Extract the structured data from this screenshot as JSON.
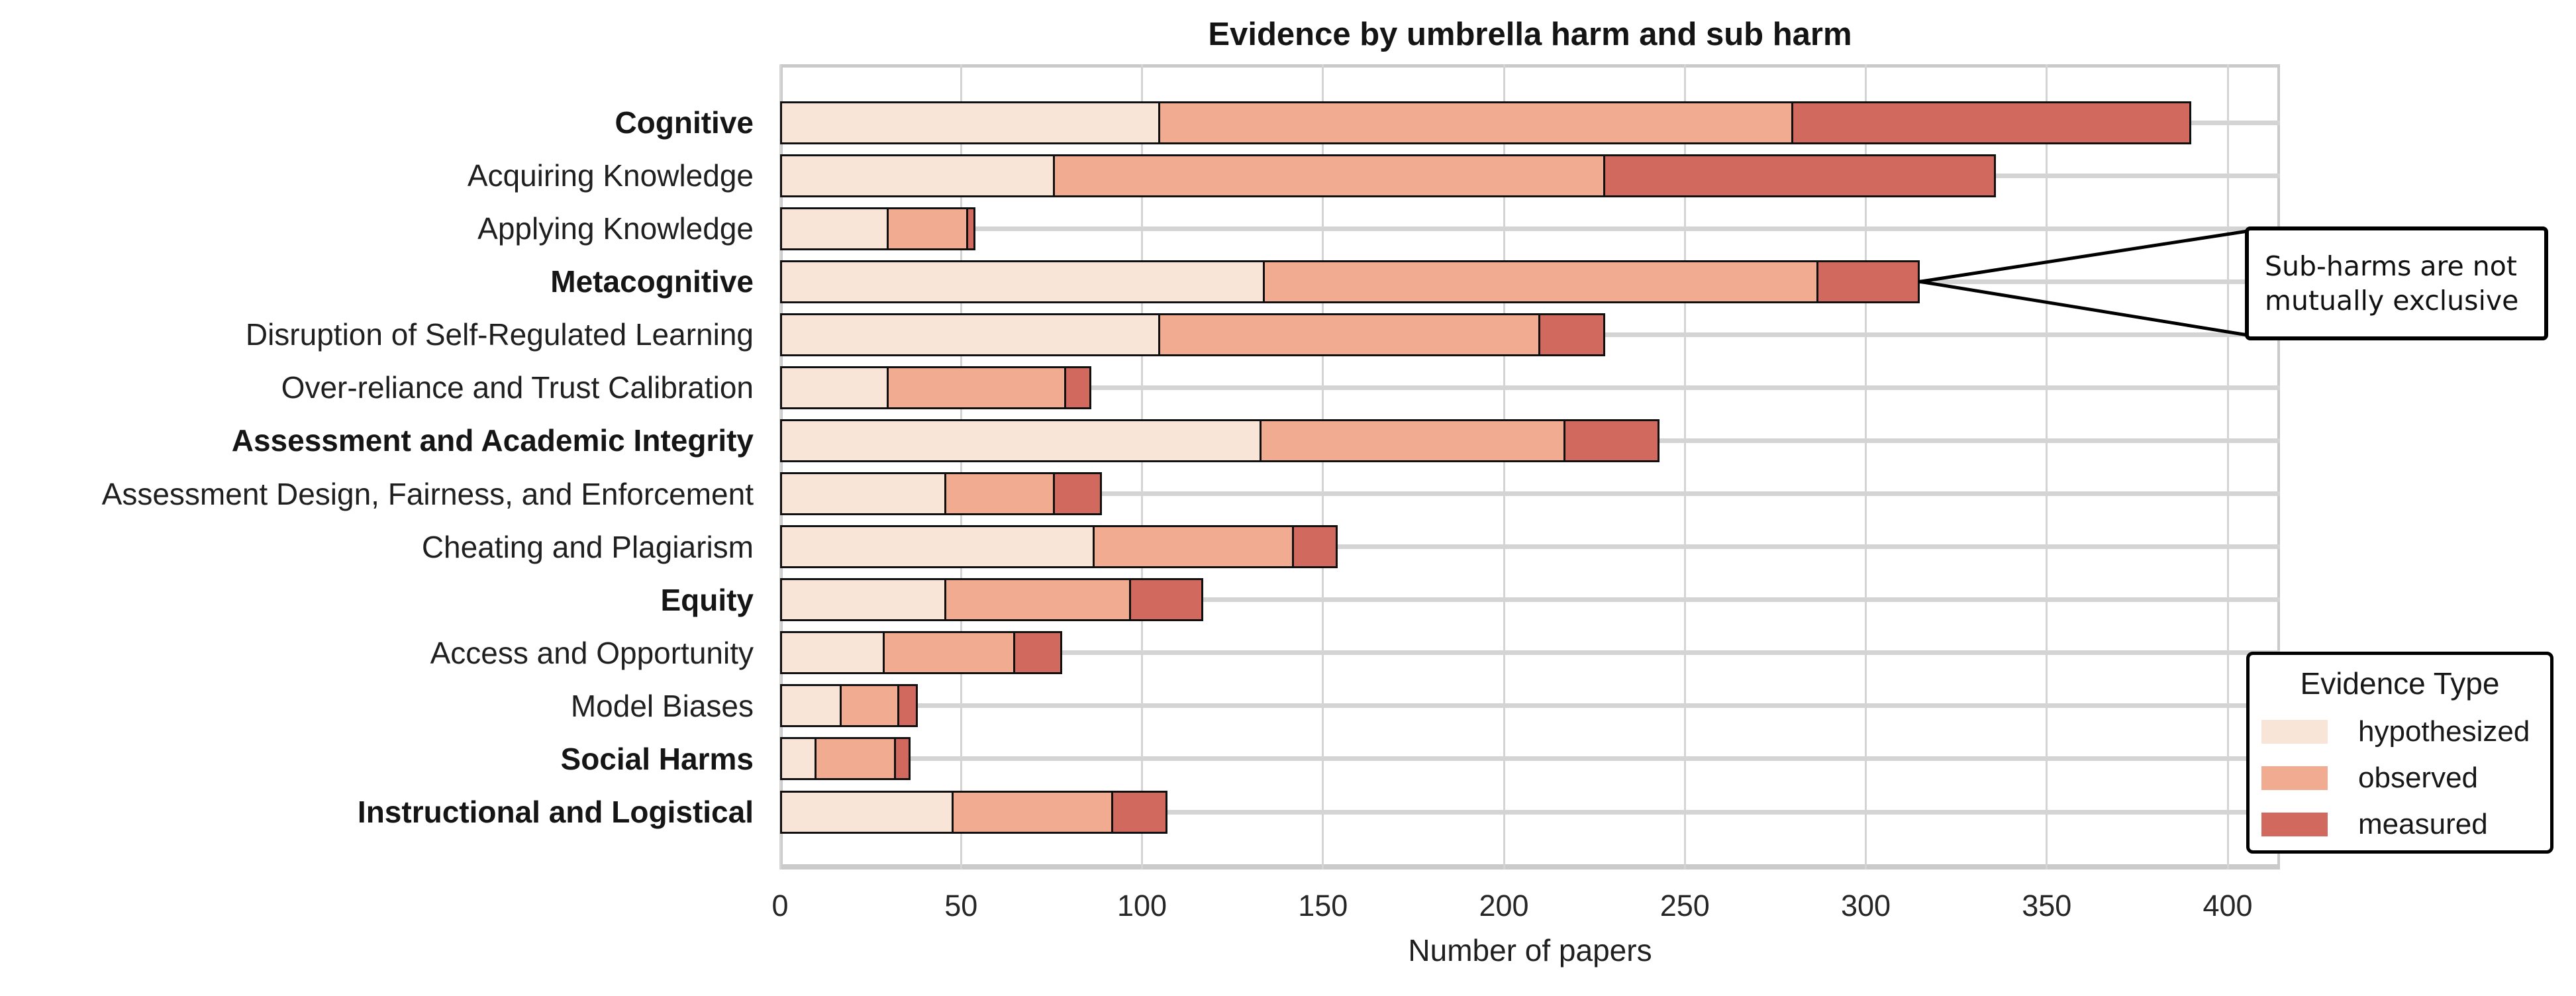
{
  "title": "Evidence by umbrella harm and sub harm",
  "x_axis": {
    "label": "Number of papers",
    "ticks": [
      0,
      50,
      100,
      150,
      200,
      250,
      300,
      350,
      400
    ]
  },
  "legend": {
    "title": "Evidence Type",
    "items": [
      {
        "label": "hypothesized",
        "color": "#f9e5d8"
      },
      {
        "label": "observed",
        "color": "#f1ab90"
      },
      {
        "label": "measured",
        "color": "#d2695e"
      }
    ]
  },
  "annotation": {
    "lines": [
      "Sub-harms are not",
      "mutually exclusive"
    ],
    "target_row": 3,
    "target_value": 315
  },
  "chart_data": {
    "type": "bar",
    "stacked": true,
    "orientation": "horizontal",
    "title": "Evidence by umbrella harm and sub harm",
    "xlabel": "Number of papers",
    "ylabel": "",
    "xlim": [
      0,
      415
    ],
    "xticks": [
      0,
      50,
      100,
      150,
      200,
      250,
      300,
      350,
      400
    ],
    "grid": true,
    "legend_position": "lower right",
    "categories": [
      {
        "label": "Cognitive",
        "bold": true
      },
      {
        "label": "Acquiring Knowledge",
        "bold": false
      },
      {
        "label": "Applying Knowledge",
        "bold": false
      },
      {
        "label": "Metacognitive",
        "bold": true
      },
      {
        "label": "Disruption of Self-Regulated Learning",
        "bold": false
      },
      {
        "label": "Over-reliance and Trust Calibration",
        "bold": false
      },
      {
        "label": "Assessment and Academic Integrity",
        "bold": true
      },
      {
        "label": "Assessment Design, Fairness, and Enforcement",
        "bold": false
      },
      {
        "label": "Cheating and Plagiarism",
        "bold": false
      },
      {
        "label": "Equity",
        "bold": true
      },
      {
        "label": "Access and Opportunity",
        "bold": false
      },
      {
        "label": "Model Biases",
        "bold": false
      },
      {
        "label": "Social Harms",
        "bold": true
      },
      {
        "label": "Instructional and Logistical",
        "bold": true
      }
    ],
    "series": [
      {
        "name": "hypothesized",
        "color": "#f9e5d8",
        "values": [
          105,
          76,
          30,
          134,
          105,
          30,
          133,
          46,
          87,
          46,
          29,
          17,
          10,
          48
        ]
      },
      {
        "name": "observed",
        "color": "#f1ab90",
        "values": [
          175,
          152,
          22,
          153,
          105,
          49,
          84,
          30,
          55,
          51,
          36,
          16,
          22,
          44
        ]
      },
      {
        "name": "measured",
        "color": "#d2695e",
        "values": [
          110,
          108,
          2,
          28,
          18,
          7,
          26,
          13,
          12,
          20,
          13,
          5,
          4,
          15
        ]
      }
    ],
    "totals": [
      390,
      336,
      54,
      315,
      228,
      86,
      243,
      89,
      154,
      117,
      78,
      38,
      36,
      107
    ]
  }
}
